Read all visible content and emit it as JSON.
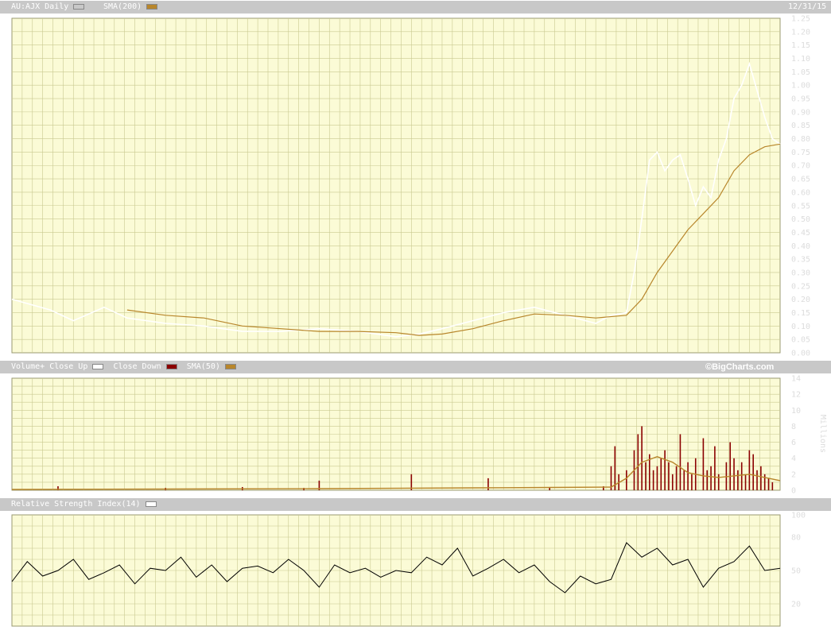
{
  "price_header": {
    "symbol": "AU:AJX",
    "interval": "Daily",
    "sma_label": "SMA(200)",
    "date": "12/31/15"
  },
  "volume_header": {
    "volume_label": "Volume+",
    "close_up_label": "Close Up",
    "close_down_label": "Close Down",
    "sma_label": "SMA(50)",
    "source": "©BigCharts.com"
  },
  "rsi_header": {
    "rsi_label": "Relative Strength Index(14)"
  },
  "colors": {
    "background": "#fbfbd6",
    "grid": "#c9c990",
    "price": "#ffffff",
    "sma": "#b8862b",
    "volume_down": "#8b0000",
    "rsi": "#000000",
    "strip": "#c8c8c8"
  },
  "chart_data": [
    {
      "type": "line",
      "panel": "price",
      "series": [
        {
          "name": "AU:AJX Daily",
          "color": "#ffffff",
          "x": [
            0,
            0.05,
            0.08,
            0.12,
            0.15,
            0.2,
            0.25,
            0.3,
            0.35,
            0.4,
            0.45,
            0.5,
            0.53,
            0.56,
            0.6,
            0.64,
            0.68,
            0.72,
            0.76,
            0.78,
            0.8,
            0.81,
            0.82,
            0.83,
            0.84,
            0.85,
            0.86,
            0.87,
            0.88,
            0.89,
            0.9,
            0.91,
            0.92,
            0.93,
            0.94,
            0.95,
            0.96,
            0.97,
            0.98,
            0.99,
            1.0
          ],
          "y": [
            0.2,
            0.16,
            0.12,
            0.17,
            0.13,
            0.11,
            0.1,
            0.08,
            0.08,
            0.09,
            0.08,
            0.06,
            0.07,
            0.09,
            0.12,
            0.15,
            0.17,
            0.14,
            0.11,
            0.14,
            0.15,
            0.3,
            0.5,
            0.72,
            0.75,
            0.68,
            0.72,
            0.74,
            0.65,
            0.55,
            0.62,
            0.58,
            0.72,
            0.8,
            0.95,
            1.0,
            1.08,
            0.98,
            0.88,
            0.8,
            0.78
          ]
        },
        {
          "name": "SMA(200)",
          "color": "#b8862b",
          "x": [
            0.15,
            0.2,
            0.25,
            0.3,
            0.35,
            0.4,
            0.45,
            0.5,
            0.53,
            0.56,
            0.6,
            0.64,
            0.68,
            0.72,
            0.76,
            0.8,
            0.82,
            0.84,
            0.86,
            0.88,
            0.9,
            0.92,
            0.94,
            0.96,
            0.98,
            1.0
          ],
          "y": [
            0.16,
            0.14,
            0.13,
            0.1,
            0.09,
            0.08,
            0.08,
            0.075,
            0.065,
            0.07,
            0.09,
            0.12,
            0.145,
            0.14,
            0.13,
            0.14,
            0.2,
            0.3,
            0.38,
            0.46,
            0.52,
            0.58,
            0.68,
            0.74,
            0.77,
            0.78
          ]
        }
      ],
      "ylim": [
        0,
        1.25
      ],
      "yticks": [
        "0.00",
        "0.05",
        "0.10",
        "0.15",
        "0.20",
        "0.25",
        "0.30",
        "0.35",
        "0.40",
        "0.45",
        "0.50",
        "0.55",
        "0.60",
        "0.65",
        "0.70",
        "0.75",
        "0.80",
        "0.85",
        "0.90",
        "0.95",
        "1.00",
        "1.05",
        "1.10",
        "1.15",
        "1.20",
        "1.25"
      ],
      "grid": true
    },
    {
      "type": "bar",
      "panel": "volume",
      "yunit": "Millions",
      "bars": [
        {
          "x": 0.06,
          "v": 0.5
        },
        {
          "x": 0.2,
          "v": 0.3
        },
        {
          "x": 0.3,
          "v": 0.4
        },
        {
          "x": 0.38,
          "v": 0.3
        },
        {
          "x": 0.4,
          "v": 1.2
        },
        {
          "x": 0.52,
          "v": 2.0
        },
        {
          "x": 0.62,
          "v": 1.5
        },
        {
          "x": 0.7,
          "v": 0.4
        },
        {
          "x": 0.77,
          "v": 0.5
        },
        {
          "x": 0.78,
          "v": 3.0
        },
        {
          "x": 0.785,
          "v": 5.5
        },
        {
          "x": 0.79,
          "v": 2.0
        },
        {
          "x": 0.8,
          "v": 2.5
        },
        {
          "x": 0.81,
          "v": 5.0
        },
        {
          "x": 0.815,
          "v": 7.0
        },
        {
          "x": 0.82,
          "v": 8.0
        },
        {
          "x": 0.825,
          "v": 3.5
        },
        {
          "x": 0.83,
          "v": 4.5
        },
        {
          "x": 0.835,
          "v": 2.5
        },
        {
          "x": 0.84,
          "v": 3.0
        },
        {
          "x": 0.845,
          "v": 4.0
        },
        {
          "x": 0.85,
          "v": 5.0
        },
        {
          "x": 0.855,
          "v": 3.5
        },
        {
          "x": 0.86,
          "v": 2.0
        },
        {
          "x": 0.865,
          "v": 3.0
        },
        {
          "x": 0.87,
          "v": 7.0
        },
        {
          "x": 0.875,
          "v": 2.5
        },
        {
          "x": 0.88,
          "v": 3.5
        },
        {
          "x": 0.885,
          "v": 2.0
        },
        {
          "x": 0.89,
          "v": 4.0
        },
        {
          "x": 0.9,
          "v": 6.5
        },
        {
          "x": 0.905,
          "v": 2.5
        },
        {
          "x": 0.91,
          "v": 3.0
        },
        {
          "x": 0.915,
          "v": 5.5
        },
        {
          "x": 0.92,
          "v": 2.0
        },
        {
          "x": 0.93,
          "v": 3.5
        },
        {
          "x": 0.935,
          "v": 6.0
        },
        {
          "x": 0.94,
          "v": 4.0
        },
        {
          "x": 0.945,
          "v": 2.5
        },
        {
          "x": 0.95,
          "v": 3.5
        },
        {
          "x": 0.955,
          "v": 2.0
        },
        {
          "x": 0.96,
          "v": 5.0
        },
        {
          "x": 0.965,
          "v": 4.5
        },
        {
          "x": 0.97,
          "v": 2.5
        },
        {
          "x": 0.975,
          "v": 3.0
        },
        {
          "x": 0.98,
          "v": 2.0
        },
        {
          "x": 0.985,
          "v": 1.5
        },
        {
          "x": 0.99,
          "v": 1.0
        }
      ],
      "sma_series": {
        "name": "SMA(50)",
        "color": "#b8862b",
        "x": [
          0,
          0.2,
          0.4,
          0.6,
          0.7,
          0.78,
          0.8,
          0.82,
          0.84,
          0.86,
          0.88,
          0.9,
          0.92,
          0.94,
          0.96,
          0.98,
          1.0
        ],
        "y": [
          0.1,
          0.15,
          0.2,
          0.3,
          0.35,
          0.4,
          1.5,
          3.5,
          4.2,
          3.5,
          2.2,
          1.8,
          1.6,
          1.8,
          2.0,
          1.6,
          1.2
        ]
      },
      "ylim": [
        0,
        14
      ],
      "yticks": [
        "0",
        "2",
        "4",
        "6",
        "8",
        "10",
        "12",
        "14"
      ],
      "grid": true
    },
    {
      "type": "line",
      "panel": "rsi",
      "series": [
        {
          "name": "Relative Strength Index(14)",
          "color": "#000000",
          "x": [
            0,
            0.02,
            0.04,
            0.06,
            0.08,
            0.1,
            0.12,
            0.14,
            0.16,
            0.18,
            0.2,
            0.22,
            0.24,
            0.26,
            0.28,
            0.3,
            0.32,
            0.34,
            0.36,
            0.38,
            0.4,
            0.42,
            0.44,
            0.46,
            0.48,
            0.5,
            0.52,
            0.54,
            0.56,
            0.58,
            0.6,
            0.62,
            0.64,
            0.66,
            0.68,
            0.7,
            0.72,
            0.74,
            0.76,
            0.78,
            0.8,
            0.82,
            0.84,
            0.86,
            0.88,
            0.9,
            0.92,
            0.94,
            0.96,
            0.98,
            1.0
          ],
          "y": [
            40,
            58,
            45,
            50,
            60,
            42,
            48,
            55,
            38,
            52,
            50,
            62,
            44,
            55,
            40,
            52,
            54,
            48,
            60,
            50,
            35,
            55,
            48,
            52,
            44,
            50,
            48,
            62,
            55,
            70,
            45,
            52,
            60,
            48,
            55,
            40,
            30,
            45,
            38,
            42,
            75,
            62,
            70,
            55,
            60,
            35,
            52,
            58,
            72,
            50,
            52
          ]
        }
      ],
      "ylim": [
        0,
        100
      ],
      "yticks": [
        "20",
        "50",
        "80",
        "100"
      ],
      "grid": true
    }
  ]
}
